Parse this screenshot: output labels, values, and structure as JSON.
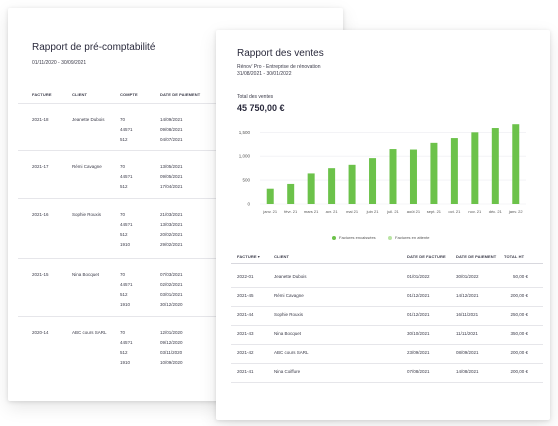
{
  "back": {
    "title": "Rapport de pré-comptabilité",
    "date_range": "01/11/2020 - 30/09/2021",
    "headers": [
      "FACTURE",
      "CLIENT",
      "COMPTE",
      "DATE DE PAIEMENT"
    ],
    "groups": [
      {
        "facture": "2021-18",
        "client": "Jeanette Dubois",
        "lines": [
          [
            "70",
            "14/09/2021"
          ],
          [
            "445?1",
            "09/08/2021"
          ],
          [
            "512",
            "04/07/2021"
          ]
        ]
      },
      {
        "facture": "2021-17",
        "client": "Rémi Cavagne",
        "lines": [
          [
            "70",
            "13/05/2021"
          ],
          [
            "445?1",
            "09/05/2021"
          ],
          [
            "512",
            "17/04/2021"
          ]
        ]
      },
      {
        "facture": "2021-16",
        "client": "Sophie Rouxis",
        "lines": [
          [
            "70",
            "21/03/2021"
          ],
          [
            "445?1",
            "13/03/2021"
          ],
          [
            "512",
            "20/02/2021"
          ],
          [
            "1910",
            "29/02/2021"
          ]
        ]
      },
      {
        "facture": "2021-15",
        "client": "Nina Bocquet",
        "lines": [
          [
            "70",
            "07/03/2021"
          ],
          [
            "445?1",
            "02/02/2021"
          ],
          [
            "512",
            "03/01/2021"
          ],
          [
            "1910",
            "30/12/2020"
          ]
        ]
      },
      {
        "facture": "2020-14",
        "client": "ABC cours SARL",
        "lines": [
          [
            "70",
            "12/01/2020"
          ],
          [
            "445?1",
            "09/12/2020"
          ],
          [
            "512",
            "03/11/2020"
          ],
          [
            "1910",
            "10/09/2020"
          ]
        ]
      }
    ]
  },
  "front": {
    "title": "Rapport des ventes",
    "subtitle1": "Rénov' Pro - Entreprise de rénovation",
    "subtitle2": "31/08/2021 - 30/01/2022",
    "total_label": "Total des ventes",
    "total_value": "45 750,00 €",
    "headers": [
      "FACTURE ▾",
      "CLIENT",
      "DATE DE FACTURE",
      "DATE DE PAIEMENT",
      "TOTAL HT"
    ],
    "rows": [
      [
        "2022-01",
        "Jeanette Dubois",
        "01/01/2022",
        "30/01/2022",
        "50,00 €"
      ],
      [
        "2021-45",
        "Rémi Cavagne",
        "01/12/2021",
        "14/12/2021",
        "200,00 €"
      ],
      [
        "2021-44",
        "Sophie Rouxis",
        "01/12/2021",
        "16/11/2021",
        "250,00 €"
      ],
      [
        "2021-43",
        "Nina Bocquet",
        "30/10/2021",
        "11/11/2021",
        "350,00 €"
      ],
      [
        "2021-42",
        "ABC cours SARL",
        "23/09/2021",
        "08/09/2021",
        "200,00 €"
      ],
      [
        "2021-41",
        "Nina Coiffure",
        "07/08/2021",
        "14/08/2021",
        "200,00 €"
      ]
    ],
    "colors": {
      "paid": "#6cc24a",
      "pending": "#b9e4a3"
    }
  },
  "chart_data": {
    "type": "bar",
    "categories": [
      "janv. 21",
      "févr. 21",
      "mars 21",
      "avr. 21",
      "mai 21",
      "juin 21",
      "juil. 21",
      "août 21",
      "sept. 21",
      "oct. 21",
      "nov. 21",
      "déc. 21",
      "janv. 22"
    ],
    "series": [
      {
        "name": "Factures encaissées",
        "values": [
          320,
          420,
          640,
          750,
          820,
          960,
          1150,
          1140,
          1280,
          1380,
          1500,
          1590,
          1670
        ]
      },
      {
        "name": "Factures en attente",
        "values": [
          0,
          0,
          0,
          0,
          0,
          0,
          0,
          0,
          0,
          0,
          0,
          0,
          0
        ]
      }
    ],
    "yticks": [
      "0",
      "500",
      "1,000",
      "1,500"
    ],
    "ylim": [
      0,
      1800
    ],
    "legend": "bottom-center",
    "grid": true
  }
}
